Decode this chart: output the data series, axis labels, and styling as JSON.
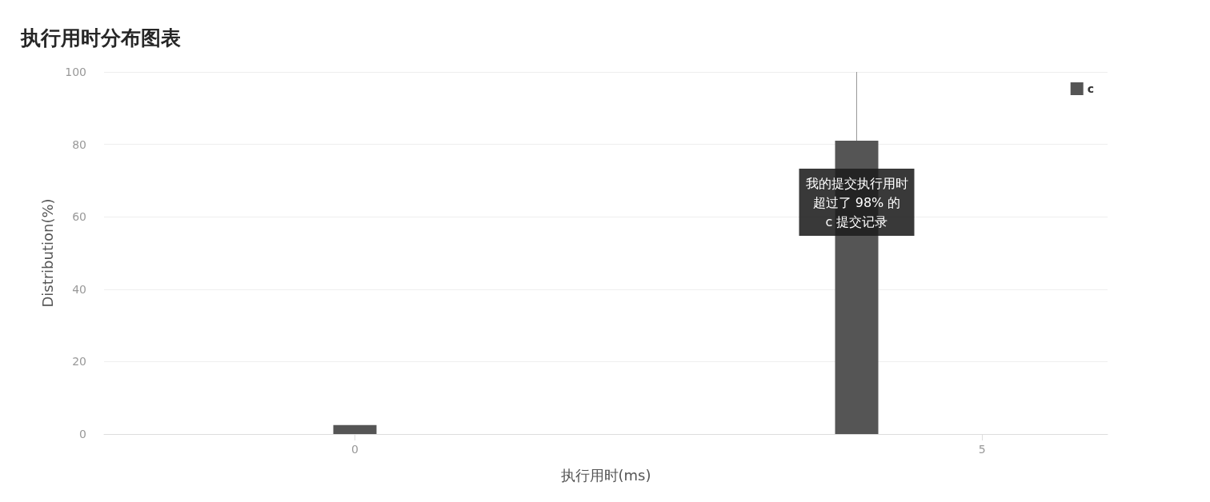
{
  "chart_data": {
    "type": "bar",
    "title": "执行用时分布图表",
    "xlabel": "执行用时(ms)",
    "ylabel": "Distribution(%)",
    "x": [
      0,
      4
    ],
    "series": [
      {
        "name": "c",
        "color": "#555555",
        "values": [
          2.5,
          81
        ]
      }
    ],
    "xlim": [
      -2,
      6
    ],
    "xticks": [
      0,
      5
    ],
    "ylim": [
      0,
      100
    ],
    "yticks": [
      0,
      20,
      40,
      60,
      80,
      100
    ],
    "grid": "y",
    "legend": "top right",
    "ref_lines": [
      {
        "axis": "x",
        "value": 4,
        "color": "#999999"
      }
    ],
    "annotations": [
      {
        "text": "我的提交执行用时超过了 98% 的\nc 提交记录",
        "x": 4,
        "y": 64
      }
    ]
  }
}
